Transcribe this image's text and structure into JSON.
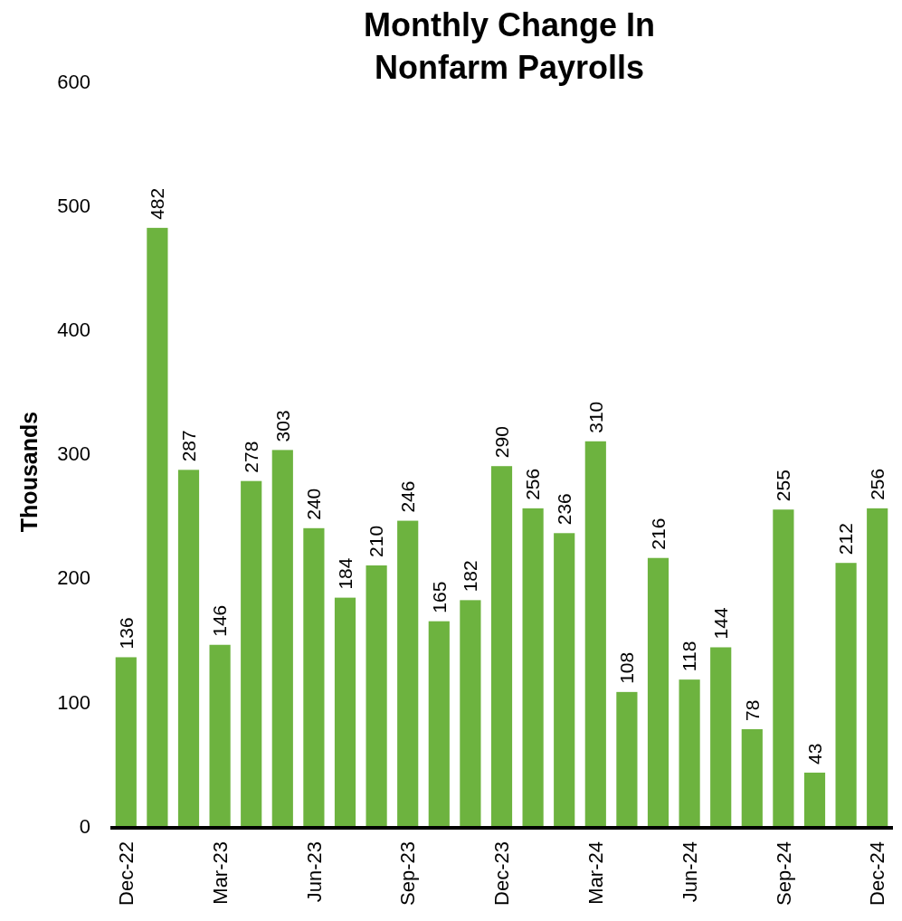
{
  "chart_data": {
    "type": "bar",
    "title": "Monthly Change In Nonfarm Payrolls",
    "ylabel": "Thousands",
    "categories": [
      "Dec-22",
      null,
      null,
      "Mar-23",
      null,
      null,
      "Jun-23",
      null,
      null,
      "Sep-23",
      null,
      null,
      "Dec-23",
      null,
      null,
      "Mar-24",
      null,
      null,
      "Jun-24",
      null,
      null,
      "Sep-24",
      null,
      null,
      "Dec-24"
    ],
    "values": [
      136,
      482,
      287,
      146,
      278,
      303,
      240,
      184,
      210,
      246,
      165,
      182,
      290,
      256,
      236,
      310,
      108,
      216,
      118,
      144,
      78,
      255,
      43,
      212,
      256
    ],
    "color": "#6db33f",
    "ylim": [
      0,
      600
    ],
    "yticks": [
      0,
      100,
      200,
      300,
      400,
      500,
      600
    ],
    "data_labels": true
  }
}
